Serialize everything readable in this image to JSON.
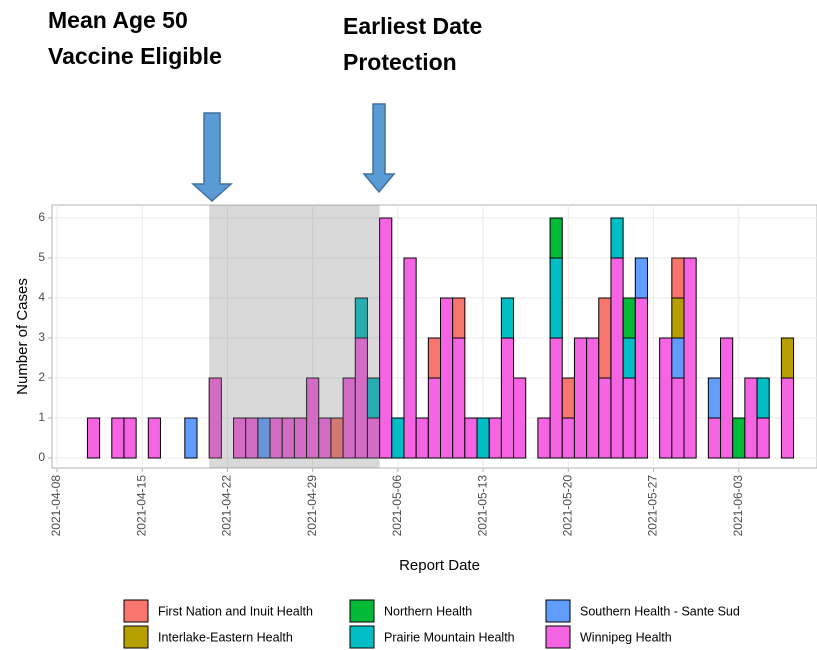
{
  "chart_data": {
    "type": "bar",
    "stacked": true,
    "annotations": [
      {
        "lines": [
          "Mean Age 50",
          "Vaccine Eligible"
        ]
      },
      {
        "lines": [
          "Earliest Date",
          "Protection"
        ]
      }
    ],
    "shaded_period": {
      "start": "2021-04-21",
      "end": "2021-05-04"
    },
    "x_label": "Report Date",
    "y_label": "Number of Cases",
    "x": [
      "2021-04-11",
      "2021-04-13",
      "2021-04-14",
      "2021-04-16",
      "2021-04-19",
      "2021-04-21",
      "2021-04-23",
      "2021-04-24",
      "2021-04-25",
      "2021-04-26",
      "2021-04-27",
      "2021-04-28",
      "2021-04-29",
      "2021-04-30",
      "2021-05-01",
      "2021-05-02",
      "2021-05-03",
      "2021-05-04",
      "2021-05-05",
      "2021-05-06",
      "2021-05-07",
      "2021-05-08",
      "2021-05-09",
      "2021-05-10",
      "2021-05-11",
      "2021-05-12",
      "2021-05-13",
      "2021-05-14",
      "2021-05-15",
      "2021-05-16",
      "2021-05-18",
      "2021-05-19",
      "2021-05-20",
      "2021-05-21",
      "2021-05-22",
      "2021-05-23",
      "2021-05-24",
      "2021-05-25",
      "2021-05-26",
      "2021-05-28",
      "2021-05-29",
      "2021-05-30",
      "2021-06-01",
      "2021-06-02",
      "2021-06-03",
      "2021-06-04",
      "2021-06-05",
      "2021-06-07"
    ],
    "series": [
      {
        "name": "First Nation and Inuit Health",
        "color": "#F8766D",
        "values": [
          0,
          0,
          0,
          0,
          0,
          0,
          0,
          0,
          0,
          0,
          0,
          0,
          0,
          0,
          1,
          0,
          0,
          0,
          0,
          0,
          0,
          0,
          1,
          0,
          1,
          0,
          0,
          0,
          0,
          0,
          0,
          0,
          1,
          0,
          0,
          2,
          0,
          0,
          0,
          0,
          1,
          0,
          0,
          0,
          0,
          0,
          0,
          0
        ]
      },
      {
        "name": "Interlake-Eastern Health",
        "color": "#B79F00",
        "values": [
          0,
          0,
          0,
          0,
          0,
          0,
          0,
          0,
          0,
          0,
          0,
          0,
          0,
          0,
          0,
          0,
          0,
          0,
          0,
          0,
          0,
          0,
          0,
          0,
          0,
          0,
          0,
          0,
          0,
          0,
          0,
          0,
          0,
          0,
          0,
          0,
          0,
          0,
          0,
          0,
          1,
          0,
          0,
          0,
          0,
          0,
          0,
          1
        ]
      },
      {
        "name": "Northern Health",
        "color": "#00BA38",
        "values": [
          0,
          0,
          0,
          0,
          0,
          0,
          0,
          0,
          0,
          0,
          0,
          0,
          0,
          0,
          0,
          0,
          0,
          0,
          0,
          0,
          0,
          0,
          0,
          0,
          0,
          0,
          0,
          0,
          0,
          0,
          0,
          1,
          0,
          0,
          0,
          0,
          0,
          1,
          0,
          0,
          0,
          0,
          0,
          0,
          1,
          0,
          0,
          0
        ]
      },
      {
        "name": "Prairie Mountain Health",
        "color": "#00BFC4",
        "values": [
          0,
          0,
          0,
          0,
          0,
          0,
          0,
          0,
          0,
          0,
          0,
          0,
          0,
          0,
          0,
          0,
          1,
          1,
          0,
          1,
          0,
          0,
          0,
          0,
          0,
          0,
          1,
          0,
          1,
          0,
          0,
          2,
          0,
          0,
          0,
          0,
          1,
          1,
          0,
          0,
          0,
          0,
          0,
          0,
          0,
          0,
          1,
          0
        ]
      },
      {
        "name": "Southern Health - Sante Sud",
        "color": "#619CFF",
        "values": [
          0,
          0,
          0,
          0,
          1,
          0,
          0,
          0,
          1,
          0,
          0,
          0,
          0,
          0,
          0,
          0,
          0,
          0,
          0,
          0,
          0,
          0,
          0,
          0,
          0,
          0,
          0,
          0,
          0,
          0,
          0,
          0,
          0,
          0,
          0,
          0,
          0,
          0,
          1,
          0,
          1,
          0,
          1,
          0,
          0,
          0,
          0,
          0
        ]
      },
      {
        "name": "Winnipeg Health",
        "color": "#F564E3",
        "values": [
          1,
          1,
          1,
          1,
          0,
          2,
          1,
          1,
          0,
          1,
          1,
          1,
          2,
          1,
          0,
          2,
          3,
          1,
          6,
          0,
          5,
          1,
          2,
          4,
          3,
          1,
          0,
          1,
          3,
          2,
          1,
          3,
          1,
          3,
          3,
          2,
          5,
          2,
          4,
          3,
          2,
          5,
          1,
          3,
          0,
          2,
          1,
          2
        ]
      }
    ],
    "xlim": [
      "2021-04-08",
      "2021-06-10"
    ],
    "xticks": [
      "2021-04-08",
      "2021-04-15",
      "2021-04-22",
      "2021-04-29",
      "2021-05-06",
      "2021-05-13",
      "2021-05-20",
      "2021-05-27",
      "2021-06-03",
      "2021-06-10"
    ],
    "ylim": [
      0,
      6
    ],
    "yticks": [
      0,
      1,
      2,
      3,
      4,
      5,
      6
    ],
    "grid": true,
    "legend": "bottom"
  }
}
